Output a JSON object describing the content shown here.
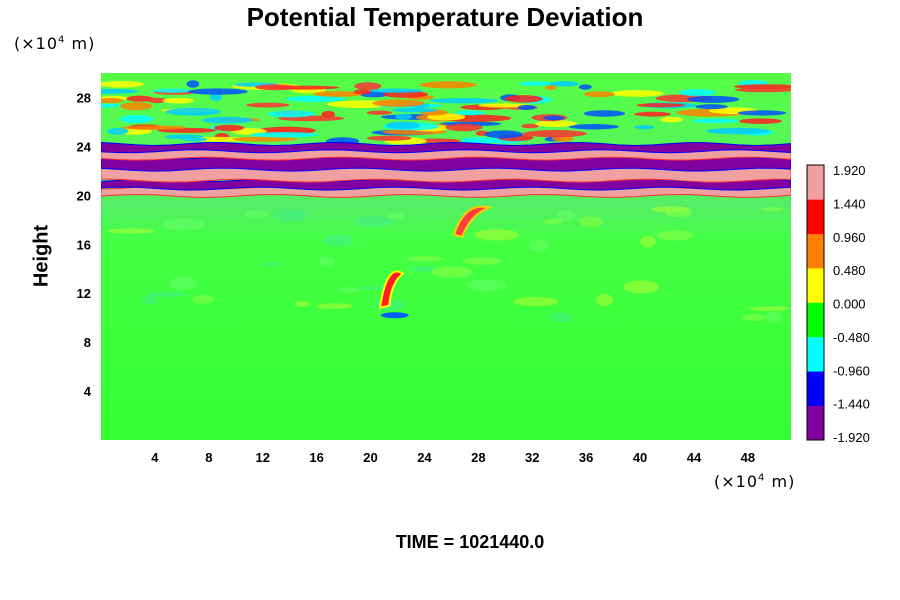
{
  "chart_data": {
    "type": "heatmap",
    "title": "Potential Temperature Deviation",
    "ylabel": "Height",
    "xlabel": "",
    "x_unit": "(×10",
    "x_unit_exp": "4",
    "x_unit_tail": " m)",
    "y_unit": "(×10",
    "y_unit_exp": "4",
    "y_unit_tail": " m)",
    "xlim": [
      0,
      51.2
    ],
    "ylim": [
      0,
      30
    ],
    "x_ticks": [
      "4",
      "8",
      "12",
      "16",
      "20",
      "24",
      "28",
      "32",
      "36",
      "40",
      "44",
      "48"
    ],
    "y_ticks": [
      "4",
      "8",
      "12",
      "16",
      "20",
      "24",
      "28"
    ],
    "colorbar": {
      "range": [
        -1.92,
        1.92
      ],
      "labels": [
        "1.920",
        "1.440",
        "0.960",
        "0.480",
        "0.000",
        "-0.480",
        "-0.960",
        "-1.440",
        "-1.920"
      ],
      "colors": [
        "#8000a0",
        "#0000ff",
        "#00ffff",
        "#00ff00",
        "#ffff00",
        "#ff8000",
        "#ff0000",
        "#f0a0a0"
      ]
    },
    "bands": [
      {
        "y_center": 20.3,
        "half_width": 0.35,
        "value": 1.92
      },
      {
        "y_center": 20.9,
        "half_width": 0.35,
        "value": -1.92
      },
      {
        "y_center": 21.8,
        "half_width": 0.6,
        "value": 1.92
      },
      {
        "y_center": 22.6,
        "half_width": 0.5,
        "value": -1.92
      },
      {
        "y_center": 23.4,
        "half_width": 0.4,
        "value": 1.92
      },
      {
        "y_center": 23.9,
        "half_width": 0.3,
        "value": -1.92
      }
    ]
  },
  "time_label": "TIME = 1021440.0"
}
